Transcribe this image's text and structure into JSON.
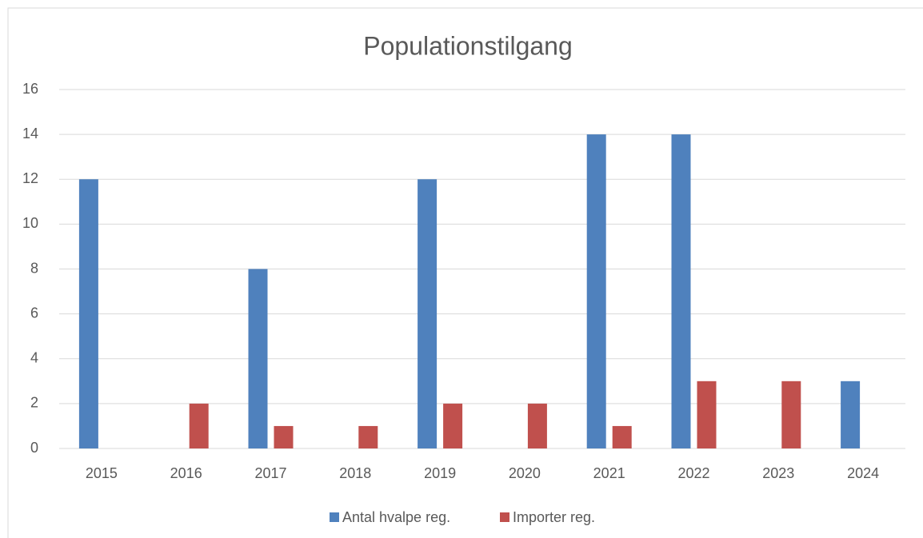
{
  "chart_data": {
    "type": "bar",
    "title": "Populationstilgang",
    "categories": [
      "2015",
      "2016",
      "2017",
      "2018",
      "2019",
      "2020",
      "2021",
      "2022",
      "2023",
      "2024"
    ],
    "series": [
      {
        "name": "Antal hvalpe reg.",
        "color": "#4f81bd",
        "values": [
          12,
          0,
          8,
          0,
          12,
          0,
          14,
          14,
          0,
          3
        ]
      },
      {
        "name": "Importer reg.",
        "color": "#c0504d",
        "values": [
          0,
          2,
          1,
          1,
          2,
          2,
          1,
          3,
          3,
          0
        ]
      }
    ],
    "ylim": [
      0,
      16
    ],
    "yticks": [
      0,
      2,
      4,
      6,
      8,
      10,
      12,
      14,
      16
    ],
    "grid": true,
    "legend": "bottom"
  }
}
